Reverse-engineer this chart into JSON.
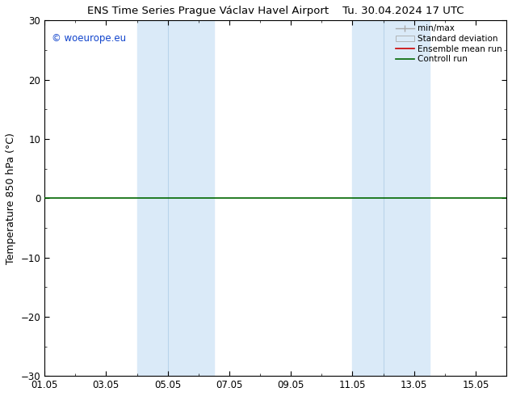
{
  "title_left": "ENS Time Series Prague Václav Havel Airport",
  "title_right": "Tu. 30.04.2024 17 UTC",
  "ylabel": "Temperature 850 hPa (°C)",
  "watermark": "© woeurope.eu",
  "ylim": [
    -30,
    30
  ],
  "yticks": [
    -30,
    -20,
    -10,
    0,
    10,
    20,
    30
  ],
  "xlim_days": [
    0,
    15
  ],
  "xtick_positions": [
    0,
    2,
    4,
    6,
    8,
    10,
    12,
    14
  ],
  "xtick_labels": [
    "01.05",
    "03.05",
    "05.05",
    "07.05",
    "09.05",
    "11.05",
    "13.05",
    "15.05"
  ],
  "shade_bands": [
    {
      "xmin": 3.0,
      "xmax": 4.0,
      "color": "#daeaf8"
    },
    {
      "xmin": 4.0,
      "xmax": 5.5,
      "color": "#daeaf8"
    },
    {
      "xmin": 10.0,
      "xmax": 11.0,
      "color": "#daeaf8"
    },
    {
      "xmin": 11.0,
      "xmax": 12.5,
      "color": "#daeaf8"
    }
  ],
  "shade_outer": [
    {
      "xmin": 3.0,
      "xmax": 5.5
    },
    {
      "xmin": 10.0,
      "xmax": 12.5
    }
  ],
  "divider_lines": [
    4.0,
    11.0
  ],
  "hline_y": 0,
  "hline_color": "#006600",
  "legend_labels": [
    "min/max",
    "Standard deviation",
    "Ensemble mean run",
    "Controll run"
  ],
  "background_color": "#ffffff",
  "plot_bg_color": "#ffffff",
  "title_fontsize": 9.5,
  "axis_label_fontsize": 9,
  "tick_fontsize": 8.5,
  "watermark_color": "#1144cc"
}
